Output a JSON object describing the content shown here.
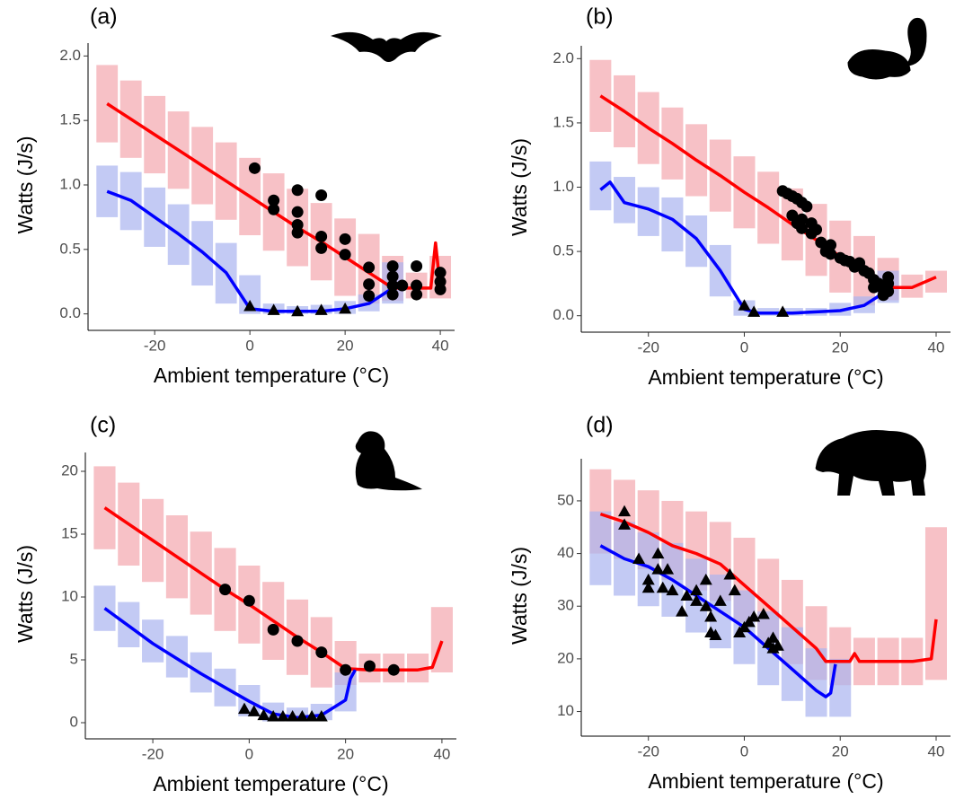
{
  "chart_data": [
    {
      "type": "line",
      "label": "(a)",
      "xlabel": "Ambient temperature (°C)",
      "ylabel": "Watts (J/s)",
      "xlim": [
        -34,
        43
      ],
      "ylim": [
        -0.1,
        2.1
      ],
      "xticks": [
        -20,
        0,
        20,
        40
      ],
      "yticks": [
        {
          "value": 0,
          "label": "0.0"
        },
        0.5,
        {
          "value": 1,
          "label": "1.0"
        },
        1.5,
        {
          "value": 2,
          "label": "2.0"
        }
      ],
      "bands": [
        {
          "color": "#f4a6ae",
          "x": [
            -30,
            -25,
            -20,
            -15,
            -10,
            -5,
            0,
            5,
            10,
            15,
            20,
            25,
            30,
            35,
            40
          ],
          "upper": [
            1.93,
            1.81,
            1.69,
            1.57,
            1.45,
            1.33,
            1.21,
            1.09,
            0.97,
            0.86,
            0.74,
            0.62,
            0.45,
            0.32,
            0.45
          ],
          "lower": [
            1.33,
            1.21,
            1.09,
            0.97,
            0.85,
            0.73,
            0.61,
            0.49,
            0.37,
            0.26,
            0.14,
            0.08,
            0.1,
            0.12,
            0.12
          ]
        },
        {
          "color": "#a9b4f0",
          "x": [
            -30,
            -25,
            -20,
            -15,
            -10,
            -5,
            0,
            5,
            10,
            15,
            20,
            25,
            30
          ],
          "upper": [
            1.15,
            1.1,
            0.98,
            0.85,
            0.72,
            0.55,
            0.3,
            0.08,
            0.06,
            0.07,
            0.1,
            0.15,
            0.4
          ],
          "lower": [
            0.75,
            0.65,
            0.52,
            0.38,
            0.22,
            0.08,
            0,
            0,
            0,
            0,
            0,
            0.02,
            0.08
          ]
        }
      ],
      "series": [
        {
          "color": "#ff0000",
          "x": [
            -30,
            -25,
            -20,
            -15,
            -10,
            -5,
            0,
            5,
            10,
            15,
            20,
            25,
            30,
            35,
            38,
            39,
            40
          ],
          "values": [
            1.63,
            1.51,
            1.39,
            1.27,
            1.15,
            1.03,
            0.91,
            0.79,
            0.67,
            0.56,
            0.44,
            0.32,
            0.2,
            0.2,
            0.2,
            0.55,
            0.2
          ]
        },
        {
          "color": "#0000ff",
          "x": [
            -30,
            -25,
            -20,
            -15,
            -10,
            -5,
            0,
            5,
            10,
            15,
            20,
            25,
            30
          ],
          "values": [
            0.95,
            0.88,
            0.75,
            0.62,
            0.48,
            0.32,
            0.04,
            0.02,
            0.02,
            0.02,
            0.04,
            0.08,
            0.2
          ]
        }
      ],
      "points": [
        {
          "marker": "circle",
          "color": "#000000",
          "x": [
            1,
            5,
            5,
            10,
            10,
            10,
            10,
            15,
            15,
            15,
            20,
            20,
            25,
            25,
            25,
            30,
            30,
            30,
            30,
            32,
            35,
            35,
            35,
            40,
            40,
            40
          ],
          "y": [
            1.13,
            0.88,
            0.81,
            0.96,
            0.79,
            0.69,
            0.63,
            0.92,
            0.6,
            0.51,
            0.58,
            0.46,
            0.36,
            0.23,
            0.14,
            0.37,
            0.29,
            0.22,
            0.15,
            0.22,
            0.37,
            0.22,
            0.15,
            0.32,
            0.25,
            0.19
          ]
        },
        {
          "marker": "triangle",
          "color": "#000000",
          "x": [
            0,
            5,
            10,
            15,
            20
          ],
          "y": [
            0.06,
            0.03,
            0.02,
            0.03,
            0.04
          ]
        }
      ]
    },
    {
      "type": "line",
      "label": "(b)",
      "xlabel": "Ambient temperature (°C)",
      "ylabel": "Watts (J/s)",
      "xlim": [
        -34,
        43
      ],
      "ylim": [
        -0.1,
        2.1
      ],
      "xticks": [
        -20,
        0,
        20,
        40
      ],
      "yticks": [
        {
          "value": 0,
          "label": "0.0"
        },
        0.5,
        {
          "value": 1,
          "label": "1.0"
        },
        1.5,
        {
          "value": 2,
          "label": "2.0"
        }
      ],
      "bands": [
        {
          "color": "#f4a6ae",
          "x": [
            -30,
            -25,
            -20,
            -15,
            -10,
            -5,
            0,
            5,
            10,
            15,
            20,
            25,
            30,
            35,
            40
          ],
          "upper": [
            1.99,
            1.87,
            1.74,
            1.62,
            1.49,
            1.37,
            1.24,
            1.12,
            0.99,
            0.87,
            0.74,
            0.62,
            0.45,
            0.32,
            0.35
          ],
          "lower": [
            1.43,
            1.31,
            1.18,
            1.06,
            0.93,
            0.81,
            0.68,
            0.56,
            0.43,
            0.31,
            0.18,
            0.08,
            0.12,
            0.14,
            0.18
          ]
        },
        {
          "color": "#a9b4f0",
          "x": [
            -30,
            -25,
            -20,
            -15,
            -10,
            -5,
            0,
            5,
            10,
            15,
            20,
            25,
            30
          ],
          "upper": [
            1.2,
            1.08,
            1.0,
            0.92,
            0.78,
            0.55,
            0.12,
            0.06,
            0.06,
            0.06,
            0.1,
            0.15,
            0.35
          ],
          "lower": [
            0.82,
            0.72,
            0.62,
            0.5,
            0.38,
            0.15,
            0,
            0,
            0,
            0,
            0,
            0.02,
            0.1
          ]
        }
      ],
      "series": [
        {
          "color": "#ff0000",
          "x": [
            -30,
            -25,
            -20,
            -15,
            -10,
            -5,
            0,
            5,
            10,
            15,
            20,
            25,
            30,
            35,
            40
          ],
          "values": [
            1.71,
            1.59,
            1.46,
            1.34,
            1.21,
            1.09,
            0.96,
            0.84,
            0.71,
            0.59,
            0.46,
            0.34,
            0.22,
            0.22,
            0.3
          ]
        },
        {
          "color": "#0000ff",
          "x": [
            -30,
            -28,
            -25,
            -20,
            -15,
            -10,
            -5,
            0,
            3,
            10,
            20,
            25,
            30
          ],
          "values": [
            0.98,
            1.04,
            0.88,
            0.83,
            0.75,
            0.6,
            0.35,
            0.05,
            0.02,
            0.02,
            0.04,
            0.08,
            0.2
          ]
        }
      ],
      "points": [
        {
          "marker": "circle",
          "color": "#000000",
          "x": [
            8,
            9,
            10,
            11,
            12,
            13,
            10,
            12,
            14,
            12,
            14,
            16,
            17,
            18,
            18,
            20,
            22,
            23,
            24,
            25,
            26,
            27,
            27,
            28,
            29,
            29,
            30,
            30,
            30,
            21,
            15,
            11
          ],
          "y": [
            0.97,
            0.95,
            0.93,
            0.91,
            0.88,
            0.85,
            0.78,
            0.75,
            0.72,
            0.68,
            0.64,
            0.57,
            0.5,
            0.55,
            0.48,
            0.45,
            0.42,
            0.38,
            0.41,
            0.35,
            0.33,
            0.28,
            0.22,
            0.25,
            0.2,
            0.16,
            0.25,
            0.19,
            0.3,
            0.43,
            0.67,
            0.72
          ]
        },
        {
          "marker": "triangle",
          "color": "#000000",
          "x": [
            0,
            2,
            8
          ],
          "y": [
            0.08,
            0.03,
            0.03
          ]
        }
      ]
    },
    {
      "type": "line",
      "label": "(c)",
      "xlabel": "Ambient temperature (°C)",
      "ylabel": "Watts (J/s)",
      "xlim": [
        -34,
        43
      ],
      "ylim": [
        -1,
        21.5
      ],
      "xticks": [
        -20,
        0,
        20,
        40
      ],
      "yticks": [
        0,
        5,
        10,
        15,
        20
      ],
      "bands": [
        {
          "color": "#f4a6ae",
          "x": [
            -30,
            -25,
            -20,
            -15,
            -10,
            -5,
            0,
            5,
            10,
            15,
            20,
            25,
            30,
            35,
            40
          ],
          "upper": [
            20.4,
            19.1,
            17.8,
            16.5,
            15.2,
            13.9,
            12.5,
            11.2,
            9.8,
            8.4,
            6.5,
            5.5,
            5.5,
            5.5,
            9.2
          ],
          "lower": [
            13.8,
            12.5,
            11.2,
            9.9,
            8.6,
            7.3,
            6.3,
            5.0,
            3.8,
            2.8,
            3.0,
            3.2,
            3.2,
            3.2,
            4.0
          ]
        },
        {
          "color": "#a9b4f0",
          "x": [
            -30,
            -25,
            -20,
            -15,
            -10,
            -5,
            0,
            5,
            10,
            15,
            20
          ],
          "upper": [
            10.9,
            9.6,
            8.2,
            6.9,
            5.6,
            4.3,
            3.0,
            1.6,
            1.2,
            1.5,
            4.0
          ],
          "lower": [
            7.3,
            6.0,
            4.8,
            3.6,
            2.4,
            1.3,
            0.5,
            0.1,
            0.1,
            0.2,
            0.9
          ]
        }
      ],
      "series": [
        {
          "color": "#ff0000",
          "x": [
            -30,
            -25,
            -20,
            -15,
            -10,
            -5,
            0,
            5,
            10,
            15,
            20,
            25,
            30,
            35,
            38,
            40
          ],
          "values": [
            17.1,
            15.8,
            14.5,
            13.2,
            11.9,
            10.6,
            9.4,
            8.1,
            6.8,
            5.6,
            4.3,
            4.2,
            4.2,
            4.2,
            4.4,
            6.5
          ]
        },
        {
          "color": "#0000ff",
          "x": [
            -30,
            -25,
            -20,
            -15,
            -10,
            -5,
            0,
            5,
            10,
            15,
            20,
            21,
            22
          ],
          "values": [
            9.1,
            7.7,
            6.3,
            5.1,
            3.9,
            2.8,
            1.7,
            0.7,
            0.4,
            0.6,
            1.8,
            3.5,
            4.2
          ]
        }
      ],
      "points": [
        {
          "marker": "circle",
          "color": "#000000",
          "x": [
            -5,
            0,
            5,
            10,
            15,
            20,
            25,
            30
          ],
          "y": [
            10.6,
            9.7,
            7.4,
            6.5,
            5.6,
            4.2,
            4.5,
            4.2
          ]
        },
        {
          "marker": "triangle",
          "color": "#000000",
          "x": [
            -1,
            1,
            3,
            5,
            7,
            9,
            11,
            13,
            15
          ],
          "y": [
            1.1,
            0.9,
            0.6,
            0.5,
            0.5,
            0.5,
            0.5,
            0.5,
            0.5
          ]
        }
      ]
    },
    {
      "type": "line",
      "label": "(d)",
      "xlabel": "Ambient temperature (°C)",
      "ylabel": "Watts (J/s)",
      "xlim": [
        -34,
        43
      ],
      "ylim": [
        6,
        58
      ],
      "xticks": [
        -20,
        0,
        20,
        40
      ],
      "yticks": [
        10,
        20,
        30,
        40,
        50
      ],
      "bands": [
        {
          "color": "#f4a6ae",
          "x": [
            -30,
            -25,
            -20,
            -15,
            -10,
            -5,
            0,
            5,
            10,
            15,
            20,
            25,
            30,
            35,
            40
          ],
          "upper": [
            56,
            54,
            52,
            50,
            48,
            46,
            43,
            39,
            35,
            30,
            26,
            24,
            24,
            24,
            45
          ],
          "lower": [
            40,
            39,
            37,
            35,
            33,
            31,
            27,
            23,
            19,
            16,
            15,
            15,
            15,
            15,
            16
          ]
        },
        {
          "color": "#a9b4f0",
          "x": [
            -30,
            -25,
            -20,
            -15,
            -10,
            -5,
            0,
            5,
            10,
            15,
            20
          ],
          "upper": [
            48,
            46,
            44,
            42,
            39,
            36,
            33,
            29,
            26,
            22,
            20
          ],
          "lower": [
            34,
            32,
            30,
            28,
            25,
            22,
            19,
            15,
            12,
            9,
            9
          ]
        }
      ],
      "series": [
        {
          "color": "#ff0000",
          "x": [
            -30,
            -25,
            -20,
            -15,
            -10,
            -5,
            0,
            5,
            10,
            15,
            17,
            22,
            23,
            24,
            35,
            39,
            40
          ],
          "values": [
            47.5,
            46,
            44,
            41.5,
            40,
            38,
            34,
            30,
            26,
            22,
            19.5,
            19.5,
            21,
            19.5,
            19.5,
            20,
            27.5
          ]
        },
        {
          "color": "#0000ff",
          "x": [
            -30,
            -25,
            -20,
            -15,
            -10,
            -5,
            0,
            5,
            10,
            15,
            17,
            18,
            19
          ],
          "values": [
            41.5,
            39,
            37.5,
            35,
            32,
            29,
            26,
            22,
            18,
            14,
            12.8,
            13.5,
            19
          ]
        }
      ],
      "points": [
        {
          "marker": "triangle",
          "color": "#000000",
          "x": [
            -25,
            -25,
            -22,
            -20,
            -20,
            -18,
            -18,
            -16,
            -17,
            -15,
            -13,
            -12,
            -10,
            -10,
            -8,
            -8,
            -7,
            -7,
            -6,
            -5,
            -3,
            -2,
            -1,
            0,
            1,
            2,
            4,
            5,
            6,
            6,
            7
          ],
          "y": [
            48,
            45.5,
            39,
            35,
            33.5,
            40,
            37,
            37,
            33.5,
            33,
            29,
            32,
            33,
            31,
            35,
            30,
            28,
            25,
            24.5,
            31,
            36,
            33,
            25,
            26,
            27,
            28,
            28.5,
            23,
            22,
            24,
            22.5
          ]
        }
      ]
    }
  ]
}
